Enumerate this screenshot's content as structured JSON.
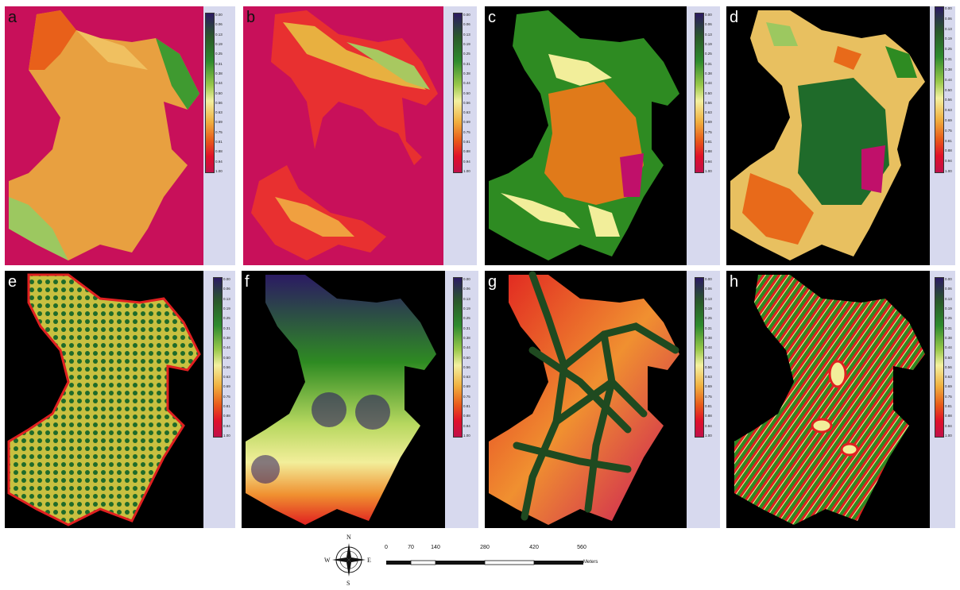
{
  "panels": [
    {
      "id": "a",
      "label": "a"
    },
    {
      "id": "b",
      "label": "b"
    },
    {
      "id": "c",
      "label": "c"
    },
    {
      "id": "d",
      "label": "d"
    },
    {
      "id": "e",
      "label": "e"
    },
    {
      "id": "f",
      "label": "f"
    },
    {
      "id": "g",
      "label": "g"
    },
    {
      "id": "h",
      "label": "h"
    }
  ],
  "legend": {
    "ticks": [
      "0.00",
      "0.06",
      "0.13",
      "0.19",
      "0.25",
      "0.31",
      "0.38",
      "0.44",
      "0.50",
      "0.56",
      "0.63",
      "0.69",
      "0.75",
      "0.81",
      "0.88",
      "0.94",
      "1.00"
    ]
  },
  "compass": {
    "n": "N",
    "s": "S",
    "e": "E",
    "w": "W"
  },
  "scale": {
    "ticks": [
      "0",
      "70",
      "140",
      "280",
      "420",
      "560"
    ],
    "unit": "Meters"
  },
  "colors": {
    "background_magenta": "#c8105a",
    "black": "#000000",
    "orange": "#e8a040",
    "green_dark": "#1f6b2a",
    "green": "#2e8b22",
    "yellow": "#f2ee9a",
    "red": "#e8201a",
    "purple": "#2b1a63"
  }
}
